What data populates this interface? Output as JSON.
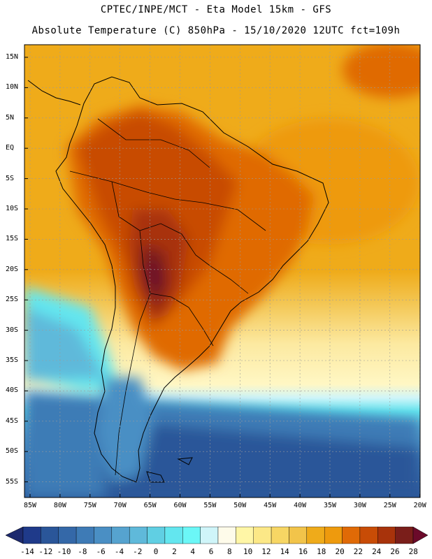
{
  "header": {
    "line1": "CPTEC/INPE/MCT -  Eta Model 15km - GFS",
    "line2": "Absolute Temperature (C) 850hPa - 15/10/2020 12UTC fct=109h"
  },
  "map": {
    "region": "South America",
    "variable": "Absolute Temperature (C) 850hPa",
    "lat_ticks": [
      "15N",
      "10N",
      "5N",
      "EQ",
      "5S",
      "10S",
      "15S",
      "20S",
      "25S",
      "30S",
      "35S",
      "40S",
      "45S",
      "50S",
      "55S"
    ],
    "lon_ticks": [
      "85W",
      "80W",
      "75W",
      "70W",
      "65W",
      "60W",
      "55W",
      "50W",
      "45W",
      "40W",
      "35W",
      "30W",
      "25W",
      "20W"
    ]
  },
  "colorbar": {
    "labels": [
      "-14",
      "-12",
      "-10",
      "-8",
      "-6",
      "-4",
      "-2",
      "0",
      "2",
      "4",
      "6",
      "8",
      "10",
      "12",
      "14",
      "16",
      "18",
      "20",
      "22",
      "24",
      "26",
      "28"
    ],
    "low_color": "#1d2a6e",
    "high_color": "#6b0a2a",
    "colors": [
      "#1f3a8a",
      "#2a5699",
      "#3468a8",
      "#3e7bb6",
      "#4a8fc4",
      "#56a3cf",
      "#5fb9da",
      "#60cfe3",
      "#63e6ef",
      "#6bf7f7",
      "#cff5f9",
      "#fefbea",
      "#fff6a6",
      "#fce887",
      "#f7d664",
      "#f2c44a",
      "#efab1a",
      "#ee9a0d",
      "#e06a06",
      "#c84c06",
      "#a8330b",
      "#7a1e1a"
    ]
  }
}
